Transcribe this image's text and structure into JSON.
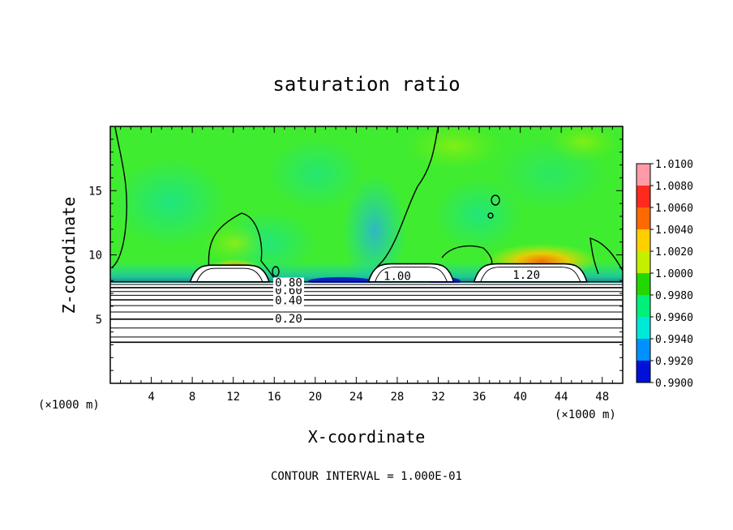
{
  "chart_data": {
    "type": "heatmap",
    "title": "saturation ratio",
    "xlabel": "X-coordinate",
    "ylabel": "Z-coordinate",
    "x_unit": "(×1000 m)",
    "x_unit_right": "(×1000 m)",
    "xlim": [
      0,
      50
    ],
    "ylim": [
      0,
      20
    ],
    "xticks": [
      4,
      8,
      12,
      16,
      20,
      24,
      28,
      32,
      36,
      40,
      44,
      48
    ],
    "yticks": [
      5,
      10,
      15
    ],
    "footer": "CONTOUR INTERVAL = 1.000E-01",
    "colorbar": {
      "labels": [
        "1.0100",
        "1.0080",
        "1.0060",
        "1.0040",
        "1.0020",
        "1.0000",
        "0.9980",
        "0.9960",
        "0.9940",
        "0.9920",
        "0.9900"
      ],
      "colors": [
        "#ff9aa6",
        "#ff2a1c",
        "#ff6a00",
        "#ffd000",
        "#c4f000",
        "#22d800",
        "#00f07a",
        "#00e8d8",
        "#0090ff",
        "#0010d8",
        "#7a00b8"
      ],
      "min": 0.99,
      "max": 1.01
    },
    "background_color": "#3ef02a",
    "contour_labels": [
      {
        "text": "0.20",
        "x": 17.4,
        "z": 4.8
      },
      {
        "text": "0.40",
        "x": 17.4,
        "z": 6.2
      },
      {
        "text": "0.60",
        "x": 17.4,
        "z": 7.0
      },
      {
        "text": "0.80",
        "x": 17.4,
        "z": 7.6
      },
      {
        "text": "1.00",
        "x": 28.0,
        "z": 8.1
      },
      {
        "text": "1.20",
        "x": 40.6,
        "z": 8.2
      }
    ],
    "contour_levels_z": [
      3.2,
      3.6,
      4.3,
      5.0,
      5.55,
      6.05,
      6.5,
      6.85,
      7.15,
      7.45,
      7.7,
      7.9
    ],
    "cloud_regions": [
      {
        "x_start": 7.8,
        "x_end": 15.5,
        "z_bottom": 7.9,
        "z_top": 9.2
      },
      {
        "x_start": 25.2,
        "x_end": 33.5,
        "z_bottom": 7.9,
        "z_top": 9.3
      },
      {
        "x_start": 35.5,
        "x_end": 46.5,
        "z_bottom": 7.9,
        "z_top": 9.3
      }
    ]
  }
}
